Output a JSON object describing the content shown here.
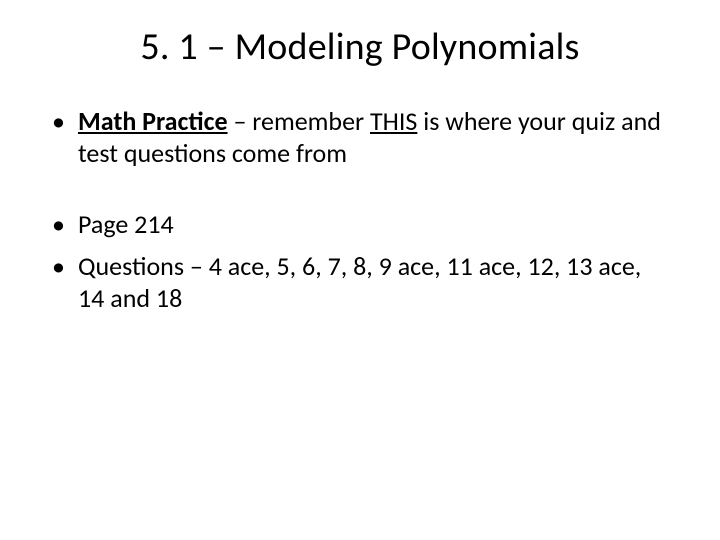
{
  "title": "5. 1 – Modeling Polynomials",
  "bullets": {
    "b1_bold": "Math Practice",
    "b1_mid": " – remember ",
    "b1_this": "THIS",
    "b1_rest": " is where your quiz and test questions come from",
    "b2": "Page 214",
    "b3": "Questions – 4 ace, 5, 6, 7, 8, 9 ace, 11 ace, 12, 13 ace, 14 and 18"
  }
}
